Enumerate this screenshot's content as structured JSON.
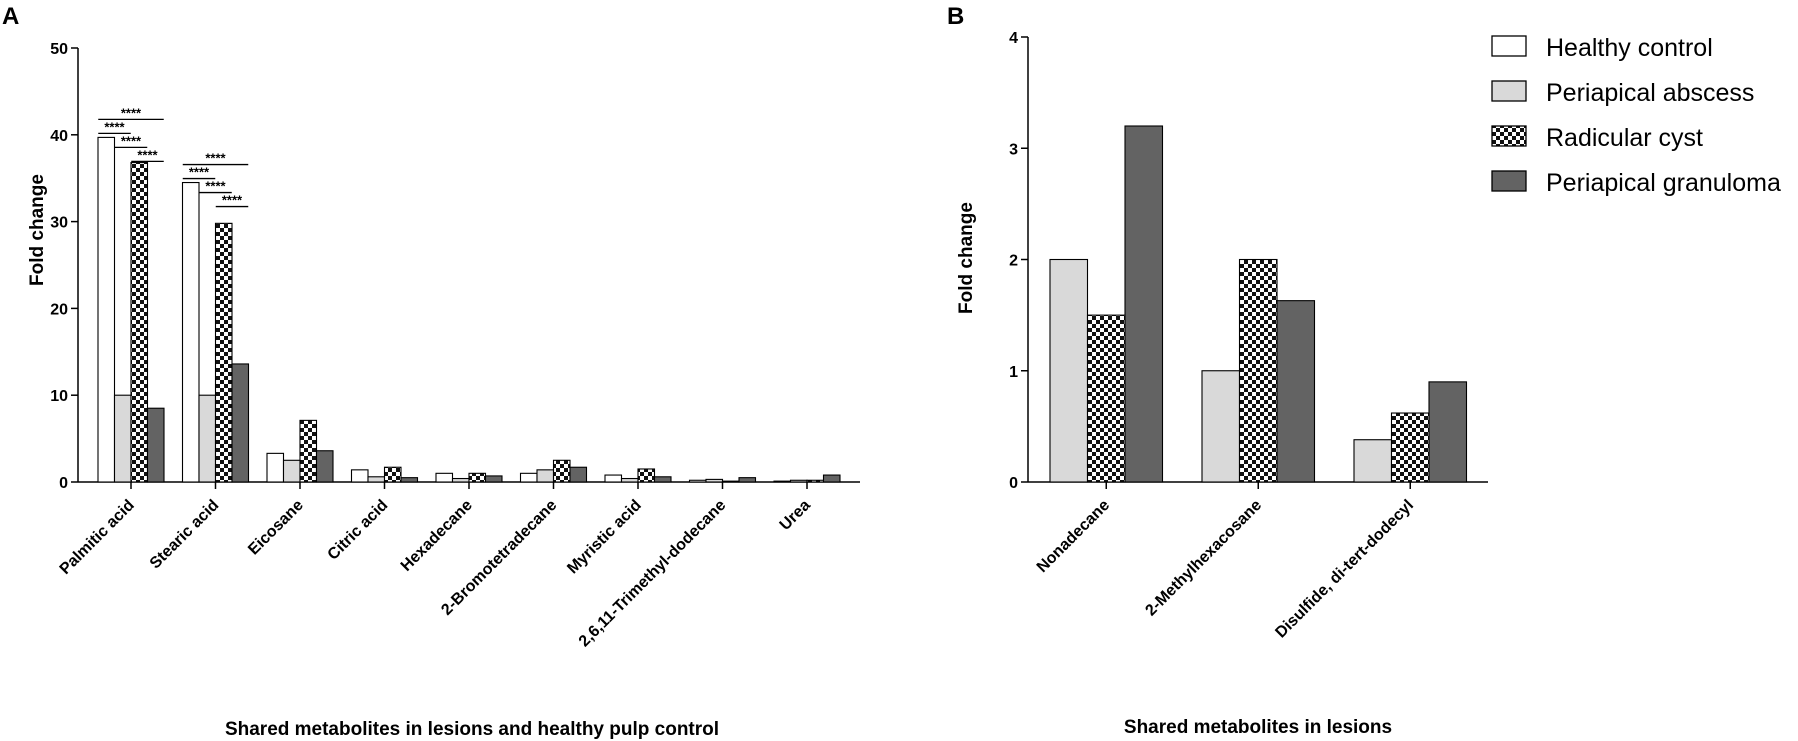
{
  "series_styles": [
    {
      "name": "Healthy control",
      "fill": "#ffffff",
      "pattern": "none"
    },
    {
      "name": "Periapical abscess",
      "fill": "#d9d9d9",
      "pattern": "none"
    },
    {
      "name": "Radicular cyst",
      "fill": "#ffffff",
      "pattern": "checker"
    },
    {
      "name": "Periapical granuloma",
      "fill": "#636363",
      "pattern": "none"
    }
  ],
  "chart_data": [
    {
      "panel": "A",
      "type": "bar",
      "title": "",
      "xlabel": "Shared metabolites in lesions and healthy pulp control",
      "ylabel": "Fold change",
      "ylim": [
        0,
        50
      ],
      "yticks": [
        "0",
        "10",
        "20",
        "30",
        "40",
        "50"
      ],
      "categories": [
        "Palmitic acid",
        "Stearic acid",
        "Eicosane",
        "Citric acid",
        "Hexadecane",
        "2-Bromotetradecane",
        "Myristic acid",
        "2,6,11-Trimethyl-dodecane",
        "Urea"
      ],
      "series": [
        {
          "name": "Healthy control",
          "values": [
            39.7,
            34.5,
            3.3,
            1.4,
            1.0,
            1.0,
            0.8,
            0.2,
            0.1
          ]
        },
        {
          "name": "Periapical abscess",
          "values": [
            10.0,
            10.0,
            2.5,
            0.6,
            0.4,
            1.4,
            0.4,
            0.3,
            0.2
          ]
        },
        {
          "name": "Radicular cyst",
          "values": [
            36.8,
            29.8,
            7.1,
            1.7,
            1.0,
            2.5,
            1.5,
            0.1,
            0.2
          ]
        },
        {
          "name": "Periapical granuloma",
          "values": [
            8.5,
            13.6,
            3.6,
            0.5,
            0.7,
            1.7,
            0.6,
            0.5,
            0.8
          ]
        }
      ],
      "significance": {
        "label": "****",
        "comparisons": [
          {
            "category": "Palmitic acid",
            "from": "Healthy control",
            "to": "Periapical abscess"
          },
          {
            "category": "Palmitic acid",
            "from": "Healthy control",
            "to": "Periapical granuloma"
          },
          {
            "category": "Palmitic acid",
            "from": "Periapical abscess",
            "to": "Radicular cyst"
          },
          {
            "category": "Palmitic acid",
            "from": "Radicular cyst",
            "to": "Periapical granuloma"
          },
          {
            "category": "Stearic acid",
            "from": "Healthy control",
            "to": "Periapical abscess"
          },
          {
            "category": "Stearic acid",
            "from": "Healthy control",
            "to": "Periapical granuloma"
          },
          {
            "category": "Stearic acid",
            "from": "Periapical abscess",
            "to": "Radicular cyst"
          },
          {
            "category": "Stearic acid",
            "from": "Radicular cyst",
            "to": "Periapical granuloma"
          }
        ]
      }
    },
    {
      "panel": "B",
      "type": "bar",
      "title": "",
      "xlabel": "Shared metabolites in lesions",
      "ylabel": "Fold change",
      "ylim": [
        0,
        4
      ],
      "yticks": [
        "0",
        "1",
        "2",
        "3",
        "4"
      ],
      "categories": [
        "Nonadecane",
        "2-Methylhexacosane",
        "Disulfide, di-tert-dodecyl"
      ],
      "series": [
        {
          "name": "Periapical abscess",
          "values": [
            2.0,
            1.0,
            0.38
          ]
        },
        {
          "name": "Radicular cyst",
          "values": [
            1.5,
            2.0,
            0.62
          ]
        },
        {
          "name": "Periapical granuloma",
          "values": [
            3.2,
            1.63,
            0.9
          ]
        }
      ],
      "legend": [
        "Healthy control",
        "Periapical abscess",
        "Radicular cyst",
        "Periapical granuloma"
      ],
      "legend_position": "top-right"
    }
  ]
}
